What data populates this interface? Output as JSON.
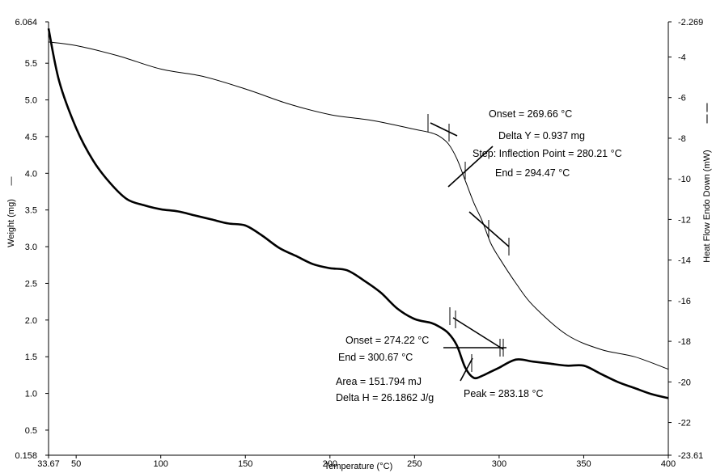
{
  "chart_data": {
    "type": "line",
    "xlabel": "Temperature (°C)",
    "ylabel_left": "Weight (mg)",
    "ylabel_right": "Heat Flow Endo Down (mW)",
    "xlim": [
      33.67,
      400
    ],
    "ylim_left": [
      0.158,
      6.064
    ],
    "ylim_right": [
      -23.61,
      -2.269
    ],
    "x_ticks": [
      "33.67",
      "50",
      "100",
      "150",
      "200",
      "250",
      "300",
      "350",
      "400"
    ],
    "x_tick_values": [
      33.67,
      50,
      100,
      150,
      200,
      250,
      300,
      350,
      400
    ],
    "y_left_ticks": [
      "6.064",
      "5.5",
      "5.0",
      "4.5",
      "4.0",
      "3.5",
      "3.0",
      "2.5",
      "2.0",
      "1.5",
      "1.0",
      "0.5",
      "0.158"
    ],
    "y_left_tick_values": [
      6.064,
      5.5,
      5.0,
      4.5,
      4.0,
      3.5,
      3.0,
      2.5,
      2.0,
      1.5,
      1.0,
      0.5,
      0.158
    ],
    "y_right_ticks": [
      "-2.269",
      "-4",
      "-6",
      "-8",
      "-10",
      "-12",
      "-14",
      "-16",
      "-18",
      "-20",
      "-22",
      "-23.61"
    ],
    "y_right_tick_values": [
      -2.269,
      -4,
      -6,
      -8,
      -10,
      -12,
      -14,
      -16,
      -18,
      -20,
      -22,
      -23.61
    ],
    "series": [
      {
        "axis": "left",
        "style": "thin",
        "x": [
          33.67,
          50,
          75,
          100,
          125,
          150,
          175,
          200,
          225,
          250,
          260,
          265,
          270,
          275,
          280,
          285,
          290,
          295,
          300,
          310,
          320,
          340,
          360,
          380,
          400
        ],
        "y": [
          5.79,
          5.74,
          5.6,
          5.42,
          5.32,
          5.15,
          4.95,
          4.8,
          4.72,
          4.6,
          4.55,
          4.5,
          4.4,
          4.2,
          3.9,
          3.6,
          3.35,
          3.05,
          2.85,
          2.5,
          2.2,
          1.8,
          1.6,
          1.5,
          1.33
        ]
      },
      {
        "axis": "right",
        "style": "thick",
        "x": [
          33.67,
          40,
          50,
          60,
          70,
          80,
          90,
          100,
          110,
          120,
          130,
          140,
          150,
          160,
          170,
          180,
          190,
          200,
          210,
          220,
          230,
          240,
          250,
          260,
          265,
          270,
          275,
          280,
          285,
          290,
          295,
          300,
          310,
          320,
          330,
          340,
          350,
          360,
          370,
          380,
          390,
          400
        ],
        "y": [
          -2.6,
          -5.2,
          -7.5,
          -9.1,
          -10.2,
          -11.0,
          -11.3,
          -11.5,
          -11.6,
          -11.8,
          -12.0,
          -12.2,
          -12.3,
          -12.8,
          -13.4,
          -13.8,
          -14.2,
          -14.4,
          -14.5,
          -15.0,
          -15.6,
          -16.4,
          -16.9,
          -17.1,
          -17.3,
          -17.6,
          -18.2,
          -19.3,
          -19.8,
          -19.7,
          -19.5,
          -19.3,
          -18.9,
          -19.0,
          -19.1,
          -19.2,
          -19.2,
          -19.6,
          -20.0,
          -20.3,
          -20.6,
          -20.8
        ]
      }
    ],
    "annotations": {
      "weight_onset": "Onset = 269.66 °C",
      "weight_delta": "Delta Y = 0.937 mg",
      "weight_inflection": "Step: Inflection Point = 280.21 °C",
      "weight_end": "End = 294.47 °C",
      "heat_onset": "Onset = 274.22 °C",
      "heat_end": "End = 300.67 °C",
      "heat_area": "Area = 151.794 mJ",
      "heat_delta_h": "Delta H = 26.1862 J/g",
      "heat_peak": "Peak = 283.18 °C"
    },
    "legend_marks": {
      "left": "—",
      "right": "— —"
    },
    "grid": false
  }
}
